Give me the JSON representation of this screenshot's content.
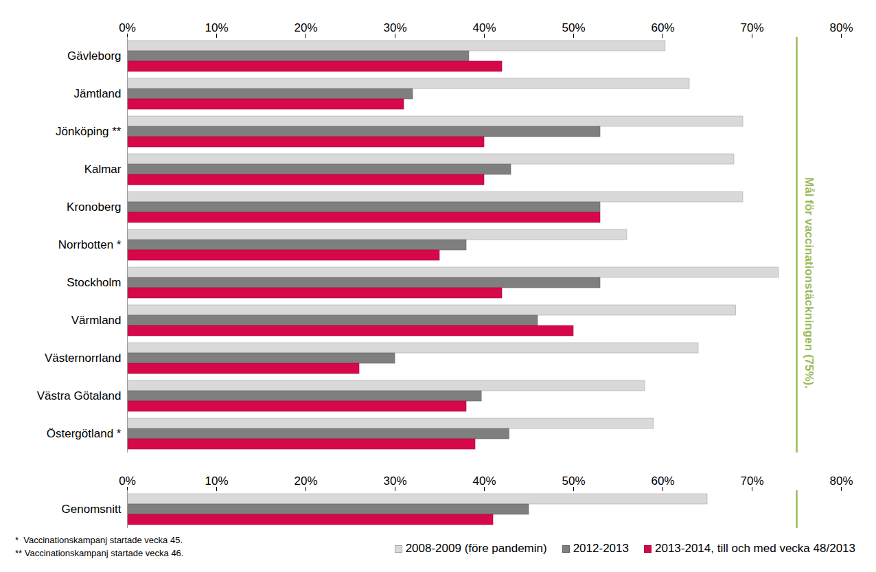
{
  "chart_data": {
    "type": "bar",
    "orientation": "horizontal",
    "categories": [
      "Gävleborg",
      "Jämtland",
      "Jönköping **",
      "Kalmar",
      "Kronoberg",
      "Norrbotten *",
      "Stockholm",
      "Värmland",
      "Västernorrland",
      "Västra Götaland",
      "Östergötland *",
      null,
      "Genomsnitt"
    ],
    "series": [
      {
        "name": "2008-2009 (före pandemin)",
        "color": "#d9d9d9",
        "values": [
          60.3,
          63,
          69,
          68,
          69,
          56,
          73,
          68.2,
          64,
          58,
          59,
          null,
          65
        ]
      },
      {
        "name": "2012-2013",
        "color": "#7f7f7f",
        "values": [
          38.3,
          32,
          53,
          43,
          53,
          38,
          53,
          46,
          30,
          39.7,
          42.8,
          null,
          45
        ]
      },
      {
        "name": "2013-2014, till och med vecka 48/2013",
        "color": "#d6084a",
        "values": [
          42,
          31,
          40,
          40,
          53,
          35,
          42,
          50,
          26,
          38,
          39,
          null,
          41
        ]
      }
    ],
    "xlim": [
      0,
      80
    ],
    "xticks": [
      {
        "value": 0,
        "label": "0%"
      },
      {
        "value": 10,
        "label": "10%"
      },
      {
        "value": 20,
        "label": "20%"
      },
      {
        "value": 30,
        "label": "30%"
      },
      {
        "value": 40,
        "label": "40%"
      },
      {
        "value": 50,
        "label": "50%"
      },
      {
        "value": 60,
        "label": "60%"
      },
      {
        "value": 70,
        "label": "70%"
      },
      {
        "value": 80,
        "label": "80%"
      }
    ],
    "grid": false,
    "legend": "bottom",
    "annotations": [
      {
        "x": 75,
        "text": "Mål för vaccinationstäckningen (75%).",
        "color": "#9bbb59"
      }
    ],
    "notes": [
      "*  Vaccinationskampanj startade vecka 45.",
      "** Vaccinationskampanj startade vecka 46."
    ]
  }
}
